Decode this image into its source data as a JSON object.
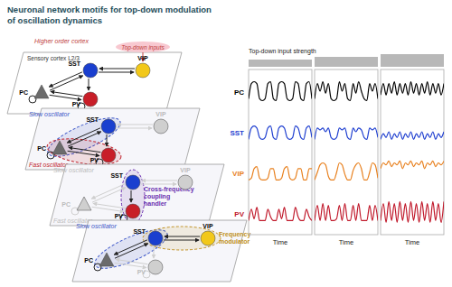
{
  "title": [
    "Neuronal network motifs for top-down modulation",
    "of oscillation dynamics"
  ],
  "diagram": {
    "higher_order": "Higher order cortex",
    "top_down": "Top-down inputs",
    "region": "Sensory cortex L2/3",
    "edges": [
      [
        0,
        1
      ],
      [
        1,
        0
      ],
      [
        0,
        2
      ],
      [
        2,
        0
      ],
      [
        1,
        2
      ],
      [
        3,
        1
      ],
      [
        1,
        3
      ],
      [
        0,
        0
      ],
      [
        2,
        2
      ]
    ],
    "panels": [
      {
        "nodes": [
          {
            "label": "PC",
            "color": "#6b6b6b",
            "active": true
          },
          {
            "label": "SST",
            "color": "#1a3fcf",
            "active": true
          },
          {
            "label": "PV",
            "color": "#c81e28",
            "active": true
          },
          {
            "label": "VIP",
            "color": "#f2c81a",
            "active": true
          }
        ],
        "groups": []
      },
      {
        "nodes": [
          {
            "label": "PC",
            "color": "#6b6b6b",
            "active": true
          },
          {
            "label": "SST",
            "color": "#1a3fcf",
            "active": true
          },
          {
            "label": "PV",
            "color": "#c81e28",
            "active": true
          },
          {
            "label": "VIP",
            "color": "#f2c81a",
            "active": false
          }
        ],
        "groups": [
          {
            "label": "Slow oscillator",
            "members": [
              0,
              1
            ],
            "color": "#3a55c8",
            "active": true
          },
          {
            "label": "Fast oscillator",
            "members": [
              0,
              2
            ],
            "color": "#c0202a",
            "active": true
          }
        ]
      },
      {
        "nodes": [
          {
            "label": "PC",
            "color": "#6b6b6b",
            "active": false
          },
          {
            "label": "SST",
            "color": "#1a3fcf",
            "active": true
          },
          {
            "label": "PV",
            "color": "#c81e28",
            "active": true
          },
          {
            "label": "VIP",
            "color": "#f2c81a",
            "active": false
          }
        ],
        "groups": [
          {
            "label": "Slow oscillator",
            "members": [
              0,
              1
            ],
            "color": "#3a55c8",
            "active": false
          },
          {
            "label": "Fast oscillator",
            "members": [
              0,
              2
            ],
            "color": "#c0202a",
            "active": false
          },
          {
            "label": "Cross-frequency coupling handler",
            "members": [
              1,
              2
            ],
            "color": "#6a2fb0",
            "active": true
          }
        ]
      },
      {
        "nodes": [
          {
            "label": "PC",
            "color": "#6b6b6b",
            "active": true
          },
          {
            "label": "SST",
            "color": "#1a3fcf",
            "active": true
          },
          {
            "label": "PV",
            "color": "#c81e28",
            "active": false
          },
          {
            "label": "VIP",
            "color": "#f2c81a",
            "active": true
          }
        ],
        "groups": [
          {
            "label": "Slow oscillator",
            "members": [
              0,
              1
            ],
            "color": "#3a55c8",
            "active": true
          },
          {
            "label": "Frequency modulator",
            "members": [
              1,
              3
            ],
            "color": "#c09020",
            "active": true
          }
        ]
      }
    ]
  },
  "header": "Top-down input strength",
  "rows": [
    {
      "label": "PC",
      "color": "#000000"
    },
    {
      "label": "SST",
      "color": "#1f3fd0"
    },
    {
      "label": "VIP",
      "color": "#e8801e"
    },
    {
      "label": "PV",
      "color": "#c0182a"
    }
  ],
  "chart_data": [
    {
      "type": "line",
      "x_label": "Time",
      "ylim": [
        0,
        1
      ],
      "tick_labels": false,
      "input_strength": 1,
      "series": [
        {
          "color": "#000000",
          "values": [
            0.3,
            0.7,
            0.75,
            0.7,
            0.3,
            0.25,
            0.3,
            0.7,
            0.75,
            0.3,
            0.25,
            0.7,
            0.75,
            0.7,
            0.3,
            0.25,
            0.3,
            0.75,
            0.7,
            0.3,
            0.25,
            0.7,
            0.75,
            0.3
          ]
        },
        {
          "color": "#1f3fd0",
          "values": [
            0.3,
            0.6,
            0.65,
            0.6,
            0.35,
            0.3,
            0.35,
            0.6,
            0.65,
            0.35,
            0.3,
            0.6,
            0.65,
            0.6,
            0.35,
            0.3,
            0.35,
            0.65,
            0.6,
            0.35,
            0.3,
            0.6,
            0.65,
            0.35
          ]
        },
        {
          "color": "#e8801e",
          "values": [
            0.3,
            0.35,
            0.6,
            0.65,
            0.35,
            0.3,
            0.3,
            0.35,
            0.6,
            0.6,
            0.3,
            0.3,
            0.35,
            0.6,
            0.65,
            0.35,
            0.3,
            0.35,
            0.6,
            0.6,
            0.3,
            0.3,
            0.6,
            0.6
          ]
        },
        {
          "color": "#c0182a",
          "values": [
            0.3,
            0.6,
            0.35,
            0.65,
            0.3,
            0.3,
            0.3,
            0.6,
            0.4,
            0.3,
            0.3,
            0.6,
            0.35,
            0.65,
            0.3,
            0.3,
            0.3,
            0.65,
            0.4,
            0.3,
            0.3,
            0.6,
            0.4,
            0.3
          ]
        }
      ]
    },
    {
      "type": "line",
      "x_label": "Time",
      "ylim": [
        0,
        1
      ],
      "tick_labels": false,
      "input_strength": 2,
      "series": [
        {
          "color": "#000000",
          "values": [
            0.3,
            0.7,
            0.5,
            0.75,
            0.45,
            0.7,
            0.3,
            0.25,
            0.3,
            0.75,
            0.5,
            0.7,
            0.3,
            0.25,
            0.7,
            0.45,
            0.75,
            0.5,
            0.3,
            0.25,
            0.7,
            0.5,
            0.7,
            0.3
          ]
        },
        {
          "color": "#1f3fd0",
          "values": [
            0.3,
            0.6,
            0.55,
            0.6,
            0.5,
            0.6,
            0.35,
            0.3,
            0.35,
            0.6,
            0.55,
            0.6,
            0.35,
            0.3,
            0.6,
            0.5,
            0.6,
            0.55,
            0.35,
            0.3,
            0.6,
            0.55,
            0.6,
            0.35
          ]
        },
        {
          "color": "#e8801e",
          "values": [
            0.3,
            0.5,
            0.7,
            0.75,
            0.7,
            0.4,
            0.3,
            0.3,
            0.5,
            0.75,
            0.7,
            0.45,
            0.3,
            0.3,
            0.55,
            0.7,
            0.75,
            0.6,
            0.3,
            0.3,
            0.5,
            0.75,
            0.7,
            0.35
          ]
        },
        {
          "color": "#c0182a",
          "values": [
            0.3,
            0.7,
            0.3,
            0.75,
            0.3,
            0.7,
            0.3,
            0.3,
            0.35,
            0.7,
            0.3,
            0.75,
            0.3,
            0.3,
            0.7,
            0.3,
            0.75,
            0.3,
            0.3,
            0.3,
            0.7,
            0.3,
            0.7,
            0.3
          ]
        }
      ]
    },
    {
      "type": "line",
      "x_label": "Time",
      "ylim": [
        0,
        1
      ],
      "tick_labels": false,
      "input_strength": 3,
      "series": [
        {
          "color": "#000000",
          "values": [
            0.4,
            0.7,
            0.4,
            0.7,
            0.45,
            0.75,
            0.4,
            0.7,
            0.45,
            0.7,
            0.4,
            0.75,
            0.45,
            0.7,
            0.4,
            0.7,
            0.45,
            0.75,
            0.4,
            0.7,
            0.45,
            0.7,
            0.4,
            0.7
          ]
        },
        {
          "color": "#1f3fd0",
          "values": [
            0.3,
            0.45,
            0.35,
            0.5,
            0.3,
            0.45,
            0.35,
            0.5,
            0.3,
            0.45,
            0.35,
            0.5,
            0.3,
            0.45,
            0.35,
            0.5,
            0.3,
            0.45,
            0.35,
            0.5,
            0.3,
            0.45,
            0.35,
            0.5
          ]
        },
        {
          "color": "#e8801e",
          "values": [
            0.6,
            0.75,
            0.7,
            0.8,
            0.65,
            0.75,
            0.7,
            0.8,
            0.6,
            0.75,
            0.7,
            0.8,
            0.65,
            0.75,
            0.7,
            0.8,
            0.6,
            0.75,
            0.7,
            0.8,
            0.65,
            0.75,
            0.7,
            0.8
          ]
        },
        {
          "color": "#c0182a",
          "values": [
            0.3,
            0.75,
            0.25,
            0.8,
            0.3,
            0.75,
            0.25,
            0.8,
            0.3,
            0.75,
            0.25,
            0.8,
            0.3,
            0.75,
            0.25,
            0.8,
            0.3,
            0.75,
            0.25,
            0.8,
            0.3,
            0.75,
            0.25,
            0.8
          ]
        }
      ]
    }
  ]
}
